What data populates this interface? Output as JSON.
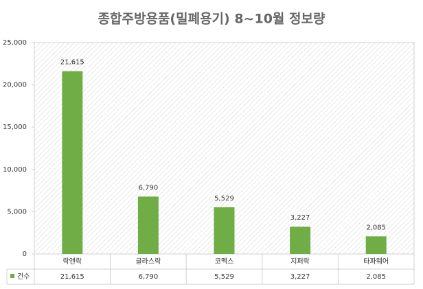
{
  "chart_data": {
    "type": "bar",
    "title": "종합주방용품(밀폐용기) 8~10월 정보량",
    "categories": [
      "락앤락",
      "글라스락",
      "코멕스",
      "지퍼락",
      "타파웨어"
    ],
    "series": [
      {
        "name": "건수",
        "color": "#70ad47",
        "values": [
          21615,
          6790,
          5529,
          3227,
          2085
        ],
        "value_labels": [
          "21,615",
          "6,790",
          "5,529",
          "3,227",
          "2,085"
        ]
      }
    ],
    "ylim": [
      0,
      25000
    ],
    "yticks": [
      0,
      {
        "value": 5000,
        "label": "5,000"
      },
      {
        "value": 10000,
        "label": "10,000"
      },
      {
        "value": 15000,
        "label": "15,000"
      },
      {
        "value": 20000,
        "label": "20,000"
      },
      {
        "value": 25000,
        "label": "25,000"
      }
    ],
    "grid": false,
    "data_table": true
  }
}
